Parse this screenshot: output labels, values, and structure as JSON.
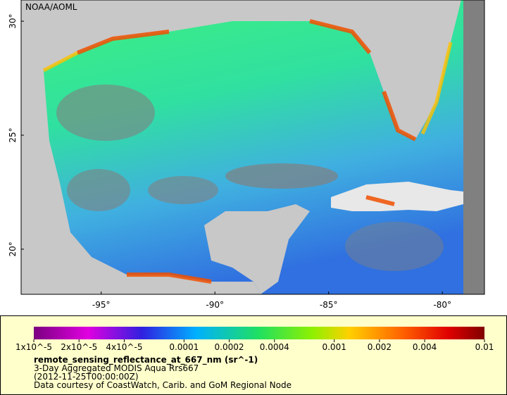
{
  "chart_data": {
    "type": "map",
    "credit": "NOAA/AOML",
    "xlim": [
      -98.52,
      -78.15
    ],
    "ylim": [
      18.02,
      30.93
    ],
    "xticks": [
      {
        "value": -95,
        "label": "-95°"
      },
      {
        "value": -90,
        "label": "-90°"
      },
      {
        "value": -85,
        "label": "-85°"
      },
      {
        "value": -80,
        "label": "-80°"
      }
    ],
    "yticks": [
      {
        "value": 20,
        "label": "20°"
      },
      {
        "value": 25,
        "label": "25°"
      },
      {
        "value": 30,
        "label": "30°"
      }
    ],
    "colorbar": {
      "log_scale": true,
      "lim": [
        1e-05,
        0.01
      ],
      "ticks": [
        {
          "value": 1e-05,
          "label": "1x10^-5"
        },
        {
          "value": 2e-05,
          "label": "2x10^-5"
        },
        {
          "value": 4e-05,
          "label": "4x10^-5"
        },
        0.0001,
        0.0002,
        0.0004,
        0.001,
        0.002,
        0.004,
        0.01
      ],
      "label": "remote_sensing_reflectance_at_667_nm (sr^-1)"
    },
    "subtitle_lines": [
      "3-Day Aggregated MODIS Aqua Rrs667",
      "(2012-11-25T00:00:00Z)",
      "Data courtesy of CoastWatch, Carib. and GoM Regional Node"
    ]
  }
}
